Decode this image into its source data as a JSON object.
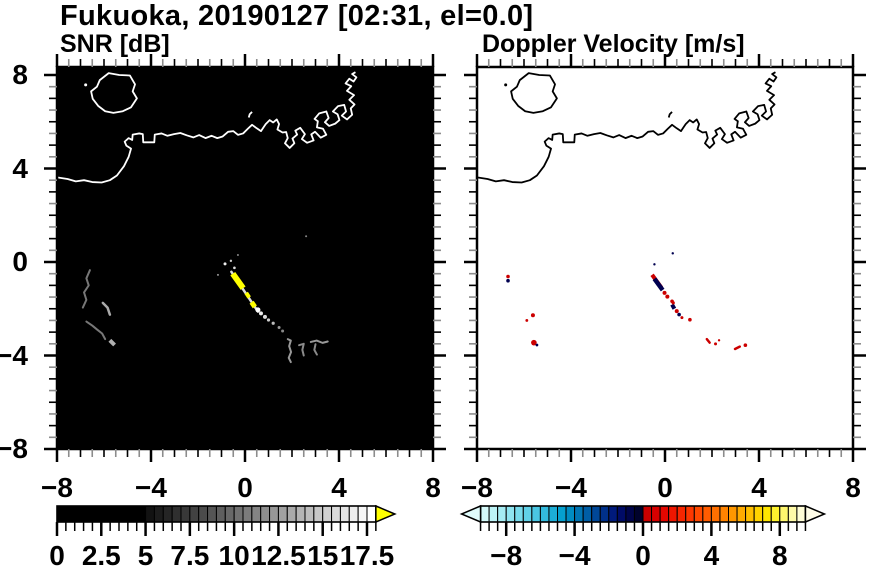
{
  "title": "Fukuoka, 20190127 [02:31, el=0.0]",
  "panels": {
    "snr": {
      "subtitle": "SNR [dB]",
      "bg": "#000000",
      "coast_color": "#ffffff"
    },
    "velocity": {
      "subtitle": "Doppler Velocity [m/s]",
      "bg": "#ffffff",
      "coast_color": "#000000"
    }
  },
  "chart_data": {
    "type": "heatmap",
    "description": "Dual-panel radar PPI map: left = SNR [dB] echoes on black sea, right = Doppler velocity [m/s] on white, identical coastline of Fukuoka / Hakata Bay, range rings -8..8 km both axes",
    "axes": {
      "xlim": [
        -8,
        8
      ],
      "ylim": [
        -8,
        8.34
      ],
      "x_tick_values": [
        -8,
        -4,
        0,
        4,
        8
      ],
      "x_tick_labels": [
        "−8",
        "−4",
        "0",
        "4",
        "8"
      ],
      "y_tick_values": [
        8,
        4,
        0,
        -4,
        -8
      ],
      "y_tick_labels": [
        "8",
        "4",
        "0",
        "−4",
        "−8"
      ],
      "major_step": 4,
      "minor_step": 0.5,
      "grid": false
    },
    "snr_colorbar": {
      "units": "dB",
      "range": [
        0,
        18
      ],
      "cell_step": 0.5,
      "tick_label_values": [
        0,
        2.5,
        5,
        7.5,
        10,
        12.5,
        15,
        17.5
      ],
      "tick_labels": [
        "0",
        "2.5",
        "5",
        "7.5",
        "10",
        "12.5",
        "15",
        "17.5"
      ],
      "arrow_right": "#ffff00",
      "cells": [
        "#000000",
        "#000000",
        "#000000",
        "#000000",
        "#000000",
        "#000000",
        "#000000",
        "#000000",
        "#000000",
        "#000000",
        "#121212",
        "#1c1c1c",
        "#252525",
        "#2f2f2f",
        "#383838",
        "#424242",
        "#4b4b4b",
        "#555555",
        "#5e5e5e",
        "#686868",
        "#717171",
        "#7b7b7b",
        "#848484",
        "#8e8e8e",
        "#979797",
        "#a1a1a1",
        "#aaaaaa",
        "#b4b4b4",
        "#bdbdbd",
        "#c7c7c7",
        "#d0d0d0",
        "#dadada",
        "#e3e3e3",
        "#ededed",
        "#f6f6f6",
        "#ffffff"
      ]
    },
    "velocity_colorbar": {
      "units": "m/s",
      "range": [
        -9.5,
        9.5
      ],
      "cell_step": 0.5,
      "tick_label_values": [
        -8,
        -4,
        0,
        4,
        8
      ],
      "tick_labels": [
        "−8",
        "−4",
        "0",
        "4",
        "8"
      ],
      "arrow_left": "#dffcfc",
      "arrow_right": "#fffde8",
      "cells": [
        "#d4f9f9",
        "#bdf3f6",
        "#a6ecf3",
        "#8fe4f0",
        "#78dbec",
        "#61d1e8",
        "#4ac6e3",
        "#33badd",
        "#1cadd6",
        "#05a0cf",
        "#008cc2",
        "#0075b4",
        "#005ea6",
        "#004798",
        "#00308a",
        "#001a7c",
        "#000b66",
        "#000449",
        "#00022c",
        "#c90000",
        "#d60000",
        "#e30700",
        "#ee1600",
        "#f72600",
        "#fd3700",
        "#ff4900",
        "#ff5c00",
        "#ff6f00",
        "#ff8300",
        "#ff9700",
        "#ffab00",
        "#ffbf00",
        "#ffd300",
        "#ffe600",
        "#fff32e",
        "#fff76e",
        "#fffaa8",
        "#fffdd6"
      ]
    },
    "coastline": {
      "island": [
        [
          -5.8,
          8.08
        ],
        [
          -5.35,
          8.0
        ],
        [
          -4.9,
          7.98
        ],
        [
          -4.68,
          7.6
        ],
        [
          -4.78,
          7.3
        ],
        [
          -4.6,
          7.0
        ],
        [
          -4.85,
          6.62
        ],
        [
          -5.2,
          6.45
        ],
        [
          -5.6,
          6.38
        ],
        [
          -5.95,
          6.45
        ],
        [
          -6.25,
          6.68
        ],
        [
          -6.48,
          6.98
        ],
        [
          -6.55,
          7.3
        ],
        [
          -6.3,
          7.5
        ],
        [
          -6.18,
          7.78
        ],
        [
          -5.8,
          8.08
        ]
      ],
      "islet": [
        -6.78,
        7.58
      ],
      "tick_mark": [
        [
          0.16,
          6.18
        ],
        [
          0.2,
          6.32
        ],
        [
          0.3,
          6.42
        ]
      ],
      "coast": [
        [
          -8,
          3.62
        ],
        [
          -7.55,
          3.55
        ],
        [
          -7.2,
          3.45
        ],
        [
          -6.85,
          3.5
        ],
        [
          -6.5,
          3.42
        ],
        [
          -6.1,
          3.4
        ],
        [
          -5.75,
          3.5
        ],
        [
          -5.45,
          3.7
        ],
        [
          -5.15,
          4.1
        ],
        [
          -4.95,
          4.5
        ],
        [
          -4.85,
          4.85
        ],
        [
          -5.05,
          4.98
        ],
        [
          -5.12,
          5.15
        ],
        [
          -4.95,
          5.3
        ],
        [
          -4.8,
          5.22
        ],
        [
          -4.78,
          5.45
        ],
        [
          -4.5,
          5.5
        ],
        [
          -4.35,
          5.47
        ],
        [
          -4.33,
          5.12
        ],
        [
          -3.86,
          5.12
        ],
        [
          -3.84,
          5.45
        ],
        [
          -3.55,
          5.5
        ],
        [
          -3.3,
          5.4
        ],
        [
          -3.02,
          5.47
        ],
        [
          -2.75,
          5.52
        ],
        [
          -2.48,
          5.42
        ],
        [
          -2.2,
          5.33
        ],
        [
          -1.95,
          5.43
        ],
        [
          -1.68,
          5.3
        ],
        [
          -1.42,
          5.4
        ],
        [
          -1.18,
          5.3
        ],
        [
          -0.95,
          5.37
        ],
        [
          -0.72,
          5.57
        ],
        [
          -0.5,
          5.6
        ],
        [
          -0.3,
          5.44
        ],
        [
          -0.08,
          5.5
        ],
        [
          0.12,
          5.7
        ],
        [
          0.3,
          5.87
        ],
        [
          0.5,
          5.72
        ],
        [
          0.68,
          5.6
        ],
        [
          0.88,
          5.9
        ],
        [
          1.05,
          6.07
        ],
        [
          1.2,
          5.97
        ],
        [
          1.35,
          6.1
        ],
        [
          1.45,
          5.9
        ],
        [
          1.38,
          5.67
        ],
        [
          1.6,
          5.54
        ],
        [
          1.75,
          5.56
        ],
        [
          1.82,
          5.3
        ],
        [
          1.7,
          5.08
        ],
        [
          1.9,
          4.88
        ],
        [
          2.1,
          5.08
        ],
        [
          2.02,
          5.28
        ],
        [
          2.22,
          5.45
        ],
        [
          2.14,
          5.62
        ],
        [
          2.35,
          5.74
        ],
        [
          2.55,
          5.47
        ],
        [
          2.42,
          5.26
        ],
        [
          2.64,
          5.1
        ],
        [
          2.92,
          5.2
        ],
        [
          2.82,
          5.46
        ],
        [
          2.98,
          5.57
        ],
        [
          3.22,
          5.32
        ],
        [
          3.46,
          5.44
        ],
        [
          3.32,
          5.7
        ],
        [
          3.06,
          5.76
        ],
        [
          3.1,
          6.02
        ],
        [
          2.96,
          6.12
        ],
        [
          3.16,
          6.36
        ],
        [
          3.46,
          6.44
        ],
        [
          3.56,
          6.16
        ],
        [
          3.4,
          5.98
        ],
        [
          3.58,
          5.82
        ],
        [
          3.84,
          5.92
        ],
        [
          4.02,
          6.07
        ],
        [
          3.94,
          6.32
        ],
        [
          3.74,
          6.44
        ],
        [
          3.96,
          6.67
        ],
        [
          4.22,
          6.72
        ],
        [
          4.3,
          6.44
        ],
        [
          4.12,
          6.26
        ],
        [
          4.34,
          6.1
        ],
        [
          4.56,
          6.3
        ],
        [
          4.5,
          6.57
        ],
        [
          4.66,
          6.74
        ],
        [
          4.44,
          6.94
        ],
        [
          4.64,
          7.14
        ],
        [
          4.34,
          7.32
        ],
        [
          4.52,
          7.52
        ],
        [
          4.28,
          7.64
        ],
        [
          4.44,
          7.84
        ],
        [
          4.62,
          7.72
        ],
        [
          4.74,
          7.9
        ],
        [
          4.56,
          8.04
        ],
        [
          4.7,
          8.12
        ]
      ]
    },
    "echoes": {
      "snr": {
        "segments": [
          {
            "pts": [
              [
                -0.58,
                -0.42
              ],
              [
                0.55,
                -2.12
              ]
            ],
            "c": "#dddddd",
            "w": 2.5
          },
          {
            "pts": [
              [
                -0.52,
                -0.5
              ],
              [
                -0.08,
                -1.12
              ]
            ],
            "c": "#ffff00",
            "w": 6
          },
          {
            "pts": [
              [
                0.05,
                -1.32
              ],
              [
                0.18,
                -1.52
              ]
            ],
            "c": "#ffff00",
            "w": 4
          },
          {
            "pts": [
              [
                0.28,
                -1.72
              ],
              [
                0.42,
                -1.92
              ]
            ],
            "c": "#ffff00",
            "w": 5
          },
          {
            "pts": [
              [
                -6.6,
                -0.35
              ],
              [
                -6.75,
                -0.7
              ],
              [
                -6.65,
                -1.0
              ],
              [
                -6.85,
                -1.3
              ],
              [
                -6.75,
                -1.62
              ],
              [
                -6.9,
                -1.95
              ]
            ],
            "c": "#777777",
            "w": 2
          },
          {
            "pts": [
              [
                -6.05,
                -1.75
              ],
              [
                -5.85,
                -1.95
              ],
              [
                -5.75,
                -2.25
              ]
            ],
            "c": "#aaaaaa",
            "w": 2.5
          },
          {
            "pts": [
              [
                -6.75,
                -2.55
              ],
              [
                -6.5,
                -2.72
              ],
              [
                -6.28,
                -2.9
              ],
              [
                -6.08,
                -3.06
              ],
              [
                -5.95,
                -3.3
              ]
            ],
            "c": "#777777",
            "w": 2
          },
          {
            "pts": [
              [
                -5.75,
                -3.35
              ],
              [
                -5.55,
                -3.55
              ]
            ],
            "c": "#b0b0b0",
            "w": 4
          },
          {
            "pts": [
              [
                1.82,
                -3.3
              ],
              [
                1.95,
                -3.36
              ],
              [
                1.88,
                -3.6
              ],
              [
                1.96,
                -3.85
              ],
              [
                1.86,
                -4.1
              ],
              [
                1.95,
                -4.28
              ]
            ],
            "c": "#999999",
            "w": 2
          },
          {
            "pts": [
              [
                2.3,
                -3.56
              ],
              [
                2.5,
                -3.5
              ],
              [
                2.44,
                -3.76
              ],
              [
                2.5,
                -4.0
              ]
            ],
            "c": "#8a8a8a",
            "w": 2
          },
          {
            "pts": [
              [
                2.8,
                -3.42
              ],
              [
                3.05,
                -3.36
              ],
              [
                3.3,
                -3.46
              ],
              [
                3.52,
                -3.4
              ]
            ],
            "c": "#999999",
            "w": 2
          },
          {
            "pts": [
              [
                3.0,
                -3.52
              ],
              [
                2.95,
                -3.76
              ],
              [
                3.06,
                -3.96
              ]
            ],
            "c": "#8a8a8a",
            "w": 2
          }
        ],
        "dots": [
          [
            0.55,
            -2.05,
            2.5,
            "#ffffff"
          ],
          [
            0.68,
            -2.2,
            2,
            "#eeeeee"
          ],
          [
            0.85,
            -2.35,
            2,
            "#dddddd"
          ],
          [
            1.0,
            -2.48,
            1.6,
            "#cccccc"
          ],
          [
            1.2,
            -2.62,
            1.6,
            "#bbbbbb"
          ],
          [
            1.45,
            -2.8,
            1.5,
            "#999999"
          ],
          [
            1.6,
            -2.95,
            1.5,
            "#888888"
          ],
          [
            -0.85,
            -0.08,
            1.5,
            "#eeeeee"
          ],
          [
            -0.6,
            0.05,
            1.2,
            "#cccccc"
          ],
          [
            -0.45,
            -0.25,
            1.3,
            "#dddddd"
          ],
          [
            -1.15,
            -0.55,
            1,
            "#999999"
          ],
          [
            -0.3,
            0.3,
            1,
            "#888888"
          ],
          [
            2.6,
            1.1,
            1,
            "#888888"
          ]
        ]
      },
      "velocity": {
        "segments": [
          {
            "pts": [
              [
                -0.55,
                -0.55
              ],
              [
                -0.15,
                -1.1
              ]
            ],
            "c": "#cc0000",
            "w": 4
          },
          {
            "pts": [
              [
                -0.45,
                -0.72
              ],
              [
                -0.1,
                -1.2
              ]
            ],
            "c": "#000050",
            "w": 4.5
          },
          {
            "pts": [
              [
                0.3,
                -1.82
              ],
              [
                0.4,
                -2.0
              ]
            ],
            "c": "#000050",
            "w": 4
          },
          {
            "pts": [
              [
                1.78,
                -3.3
              ],
              [
                1.9,
                -3.45
              ]
            ],
            "c": "#cc0000",
            "w": 2.5
          },
          {
            "pts": [
              [
                2.98,
                -3.72
              ],
              [
                3.18,
                -3.62
              ]
            ],
            "c": "#cc0000",
            "w": 2.5
          }
        ],
        "dots": [
          [
            -0.02,
            -1.32,
            2,
            "#cc0000"
          ],
          [
            0.1,
            -1.48,
            2,
            "#cc0000"
          ],
          [
            0.3,
            -1.68,
            1.8,
            "#cc0000"
          ],
          [
            0.35,
            -1.75,
            1.6,
            "#cc0000"
          ],
          [
            0.5,
            -2.1,
            2,
            "#cc0000"
          ],
          [
            0.6,
            -2.25,
            1.8,
            "#000050"
          ],
          [
            0.72,
            -2.38,
            1.5,
            "#cc0000"
          ],
          [
            1.06,
            -2.47,
            1.8,
            "#cc0000"
          ],
          [
            -0.45,
            -0.1,
            1.2,
            "#000050"
          ],
          [
            0.33,
            0.37,
            1.2,
            "#000050"
          ],
          [
            -6.68,
            -0.62,
            1.8,
            "#cc0000"
          ],
          [
            -6.68,
            -0.8,
            1.8,
            "#000050"
          ],
          [
            -5.62,
            -2.28,
            2,
            "#cc0000"
          ],
          [
            -5.88,
            -2.5,
            1.4,
            "#cc0000"
          ],
          [
            -5.58,
            -3.45,
            2.8,
            "#cc0000"
          ],
          [
            -5.45,
            -3.55,
            1.4,
            "#000050"
          ],
          [
            2.15,
            -3.5,
            1.5,
            "#cc0000"
          ],
          [
            2.3,
            -3.35,
            1.2,
            "#cc0000"
          ],
          [
            3.42,
            -3.56,
            1.8,
            "#cc0000"
          ]
        ]
      }
    }
  }
}
